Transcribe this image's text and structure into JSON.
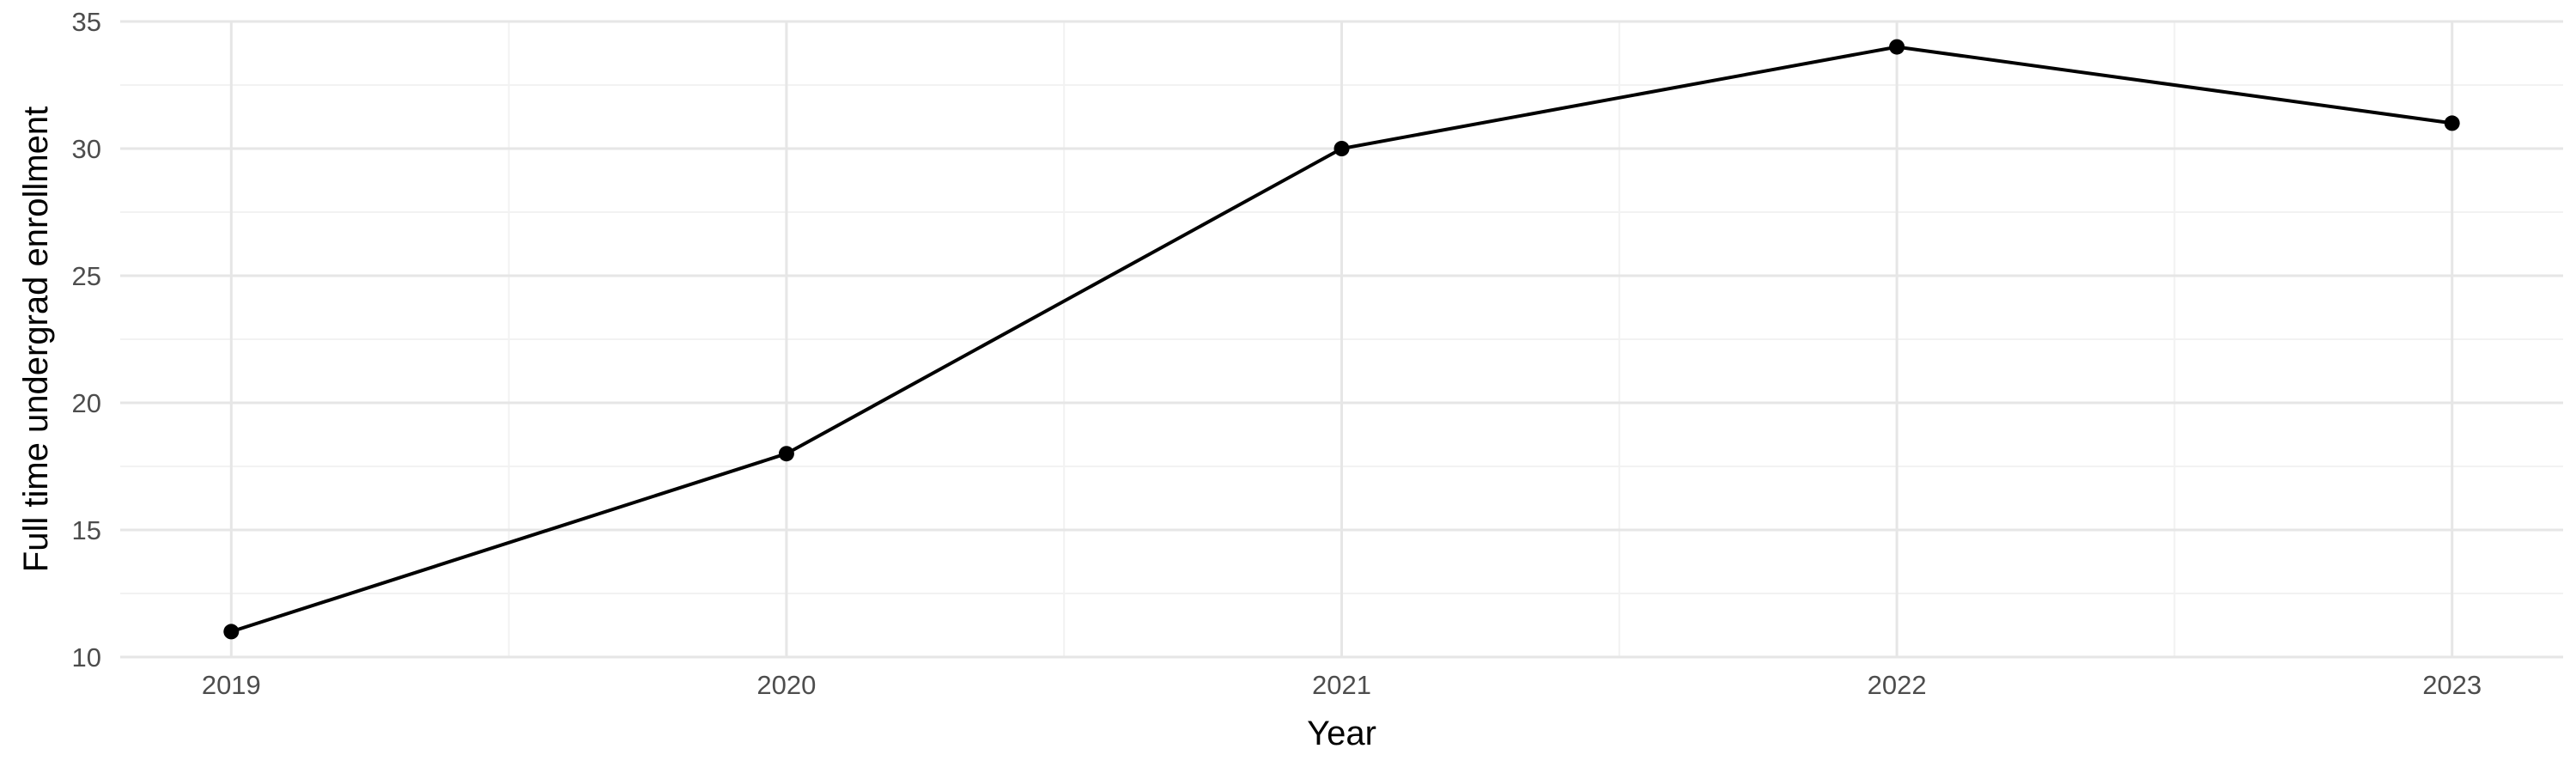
{
  "chart_data": {
    "type": "line",
    "title": "",
    "xlabel": "Year",
    "ylabel": "Full time undergrad enrollment",
    "x": [
      2019,
      2020,
      2021,
      2022,
      2023
    ],
    "series": [
      {
        "values": [
          11,
          18,
          30,
          34,
          31
        ]
      }
    ],
    "x_ticks": [
      "2019",
      "2020",
      "2021",
      "2022",
      "2023"
    ],
    "y_ticks": [
      "10",
      "15",
      "20",
      "25",
      "30",
      "35"
    ],
    "xlim": [
      2018.8,
      2023.2
    ],
    "ylim": [
      10,
      35
    ],
    "grid": true,
    "legend": "none",
    "colors": {
      "line": "#000000",
      "point": "#000000",
      "grid_major": "#e6e6e6",
      "grid_minor": "#f2f2f2"
    }
  }
}
